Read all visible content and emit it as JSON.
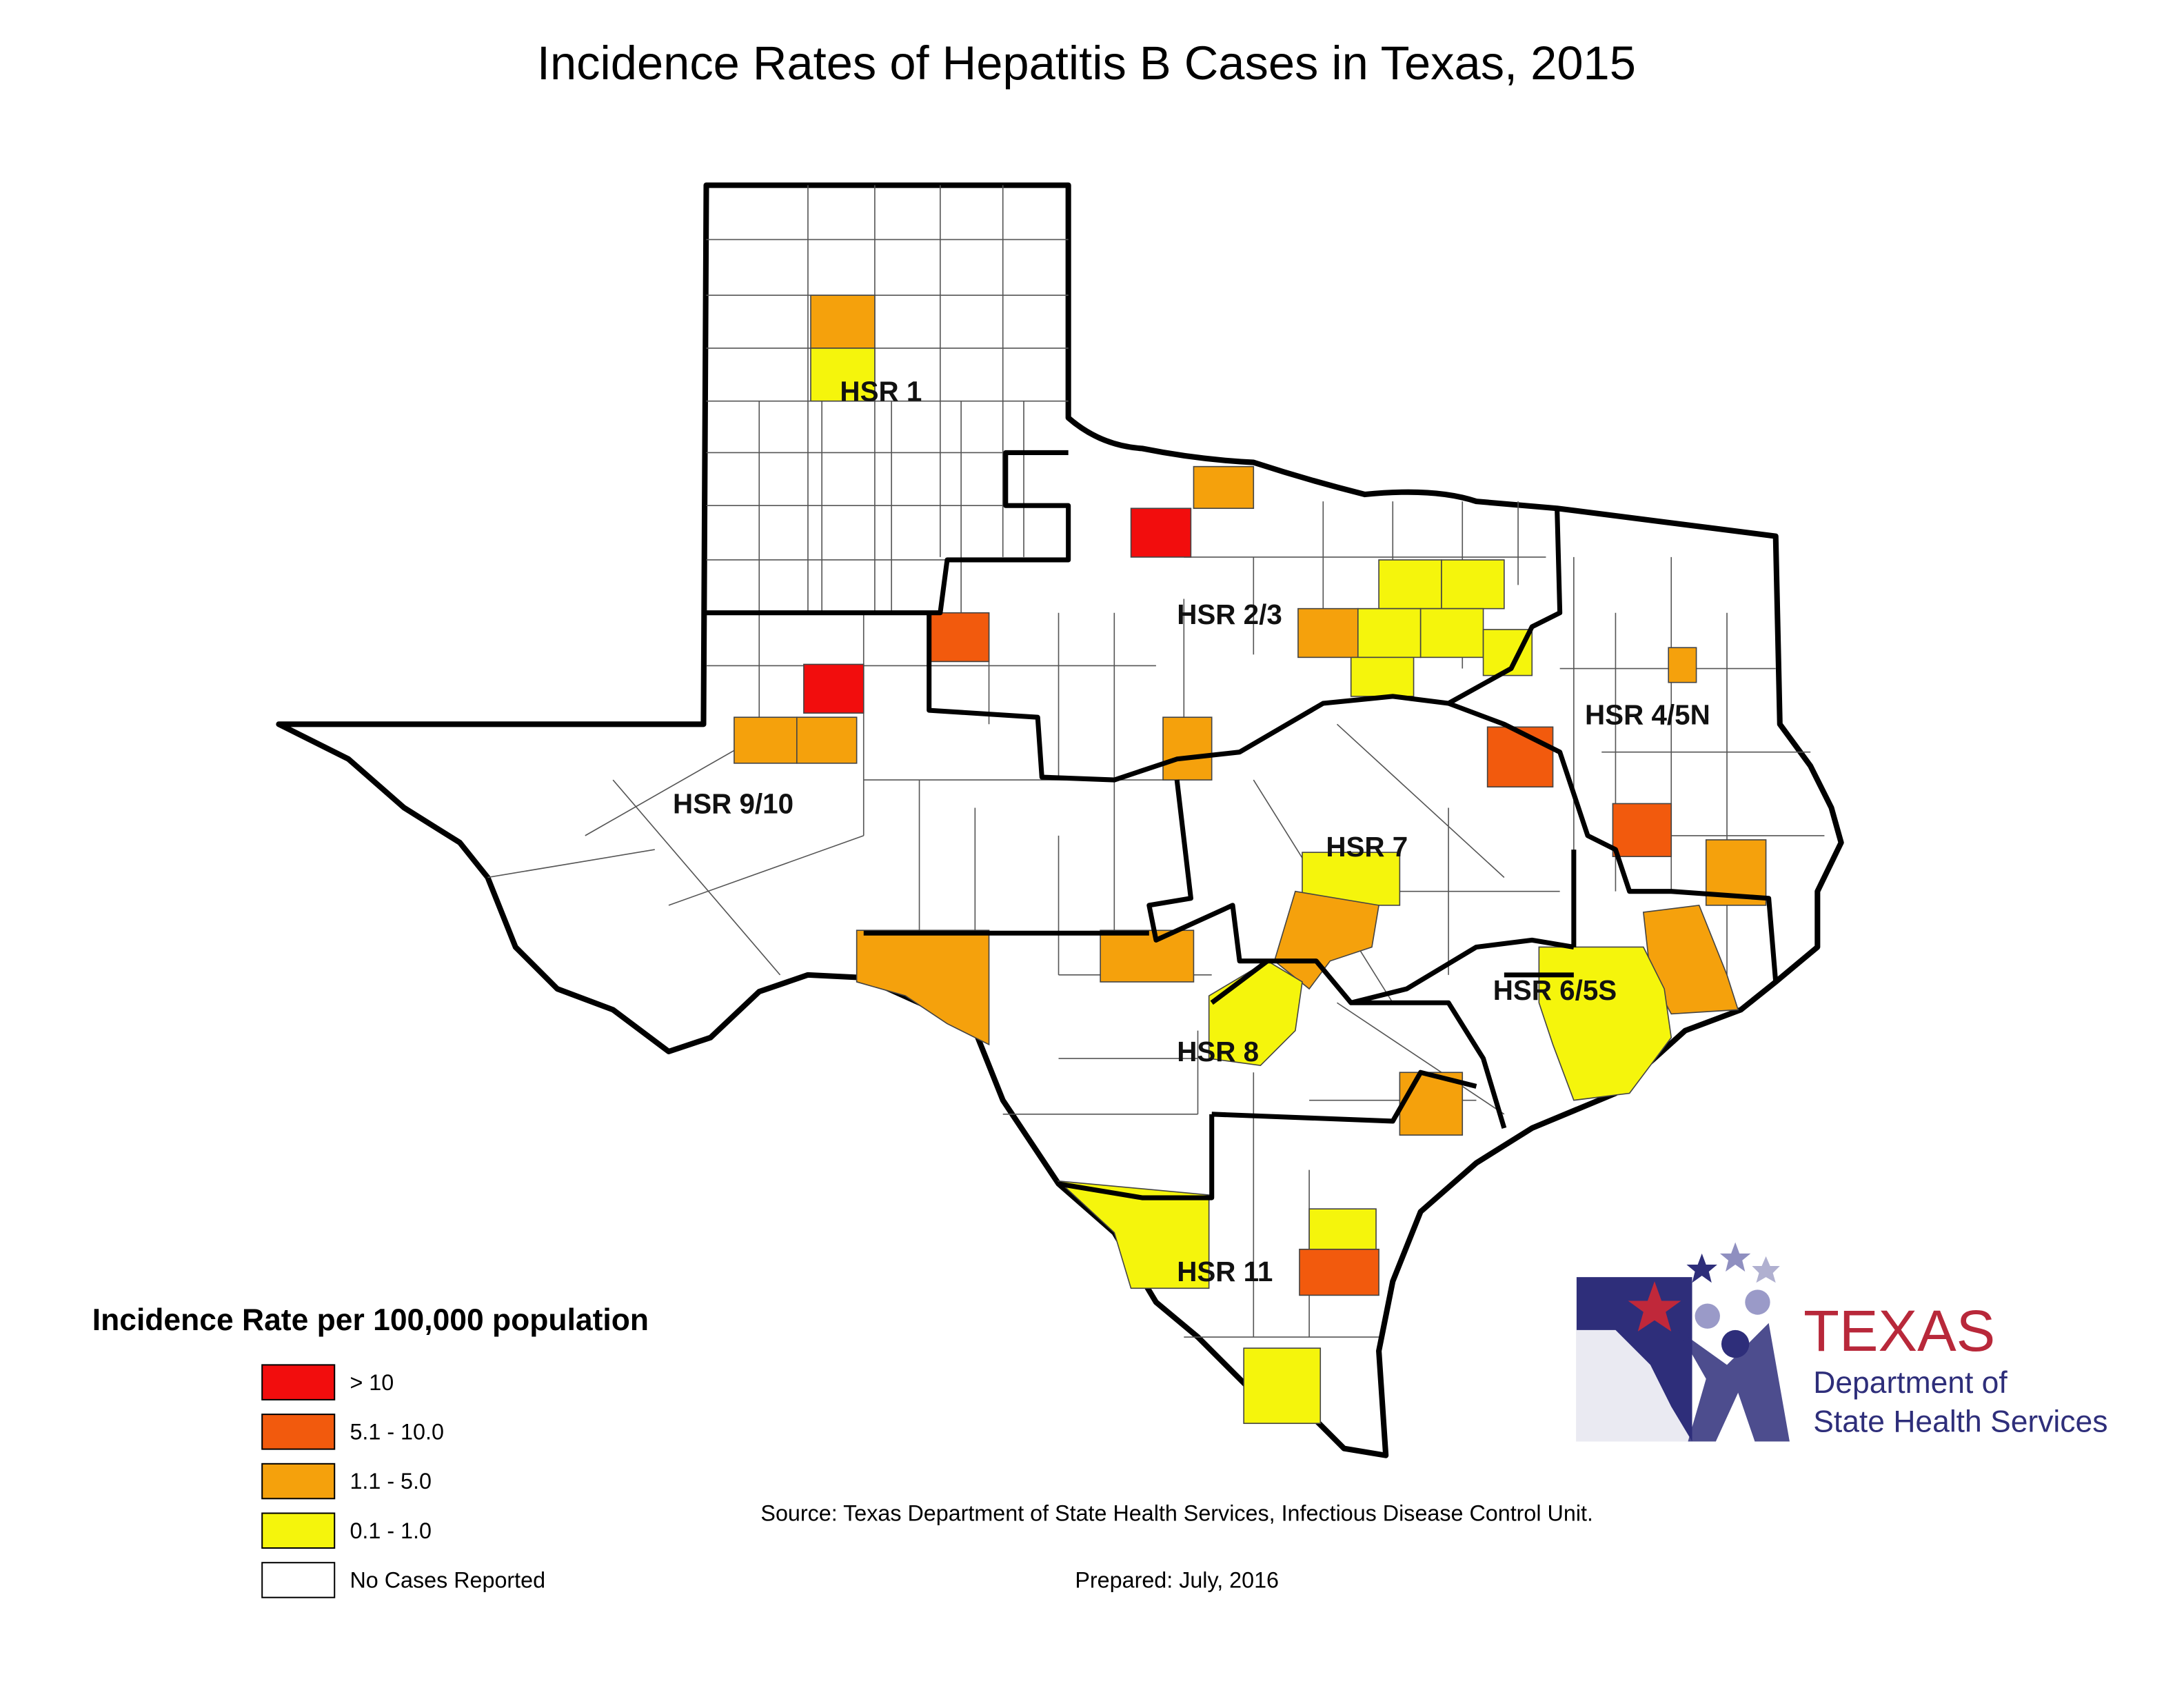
{
  "title": "Incidence Rates of Hepatitis B Cases in Texas, 2015",
  "regions": [
    {
      "label": "HSR 1"
    },
    {
      "label": "HSR 2/3"
    },
    {
      "label": "HSR 4/5N"
    },
    {
      "label": "HSR 9/10"
    },
    {
      "label": "HSR 7"
    },
    {
      "label": "HSR 6/5S"
    },
    {
      "label": "HSR 8"
    },
    {
      "label": "HSR 11"
    }
  ],
  "legend": {
    "title": "Incidence Rate per 100,000 population",
    "items": [
      {
        "label": "> 10",
        "color": "#f20d0d"
      },
      {
        "label": "5.1 - 10.0",
        "color": "#f25a0d"
      },
      {
        "label": "1.1 - 5.0",
        "color": "#f5a10c"
      },
      {
        "label": "0.1 - 1.0",
        "color": "#f5f50c"
      },
      {
        "label": "No Cases Reported",
        "color": "#ffffff"
      }
    ]
  },
  "source": "Source: Texas Department of State Health Services, Infectious Disease Control Unit.",
  "prepared": "Prepared: July, 2016",
  "logo": {
    "name": "TEXAS",
    "line1": "Department of",
    "line2": "State Health Services"
  }
}
